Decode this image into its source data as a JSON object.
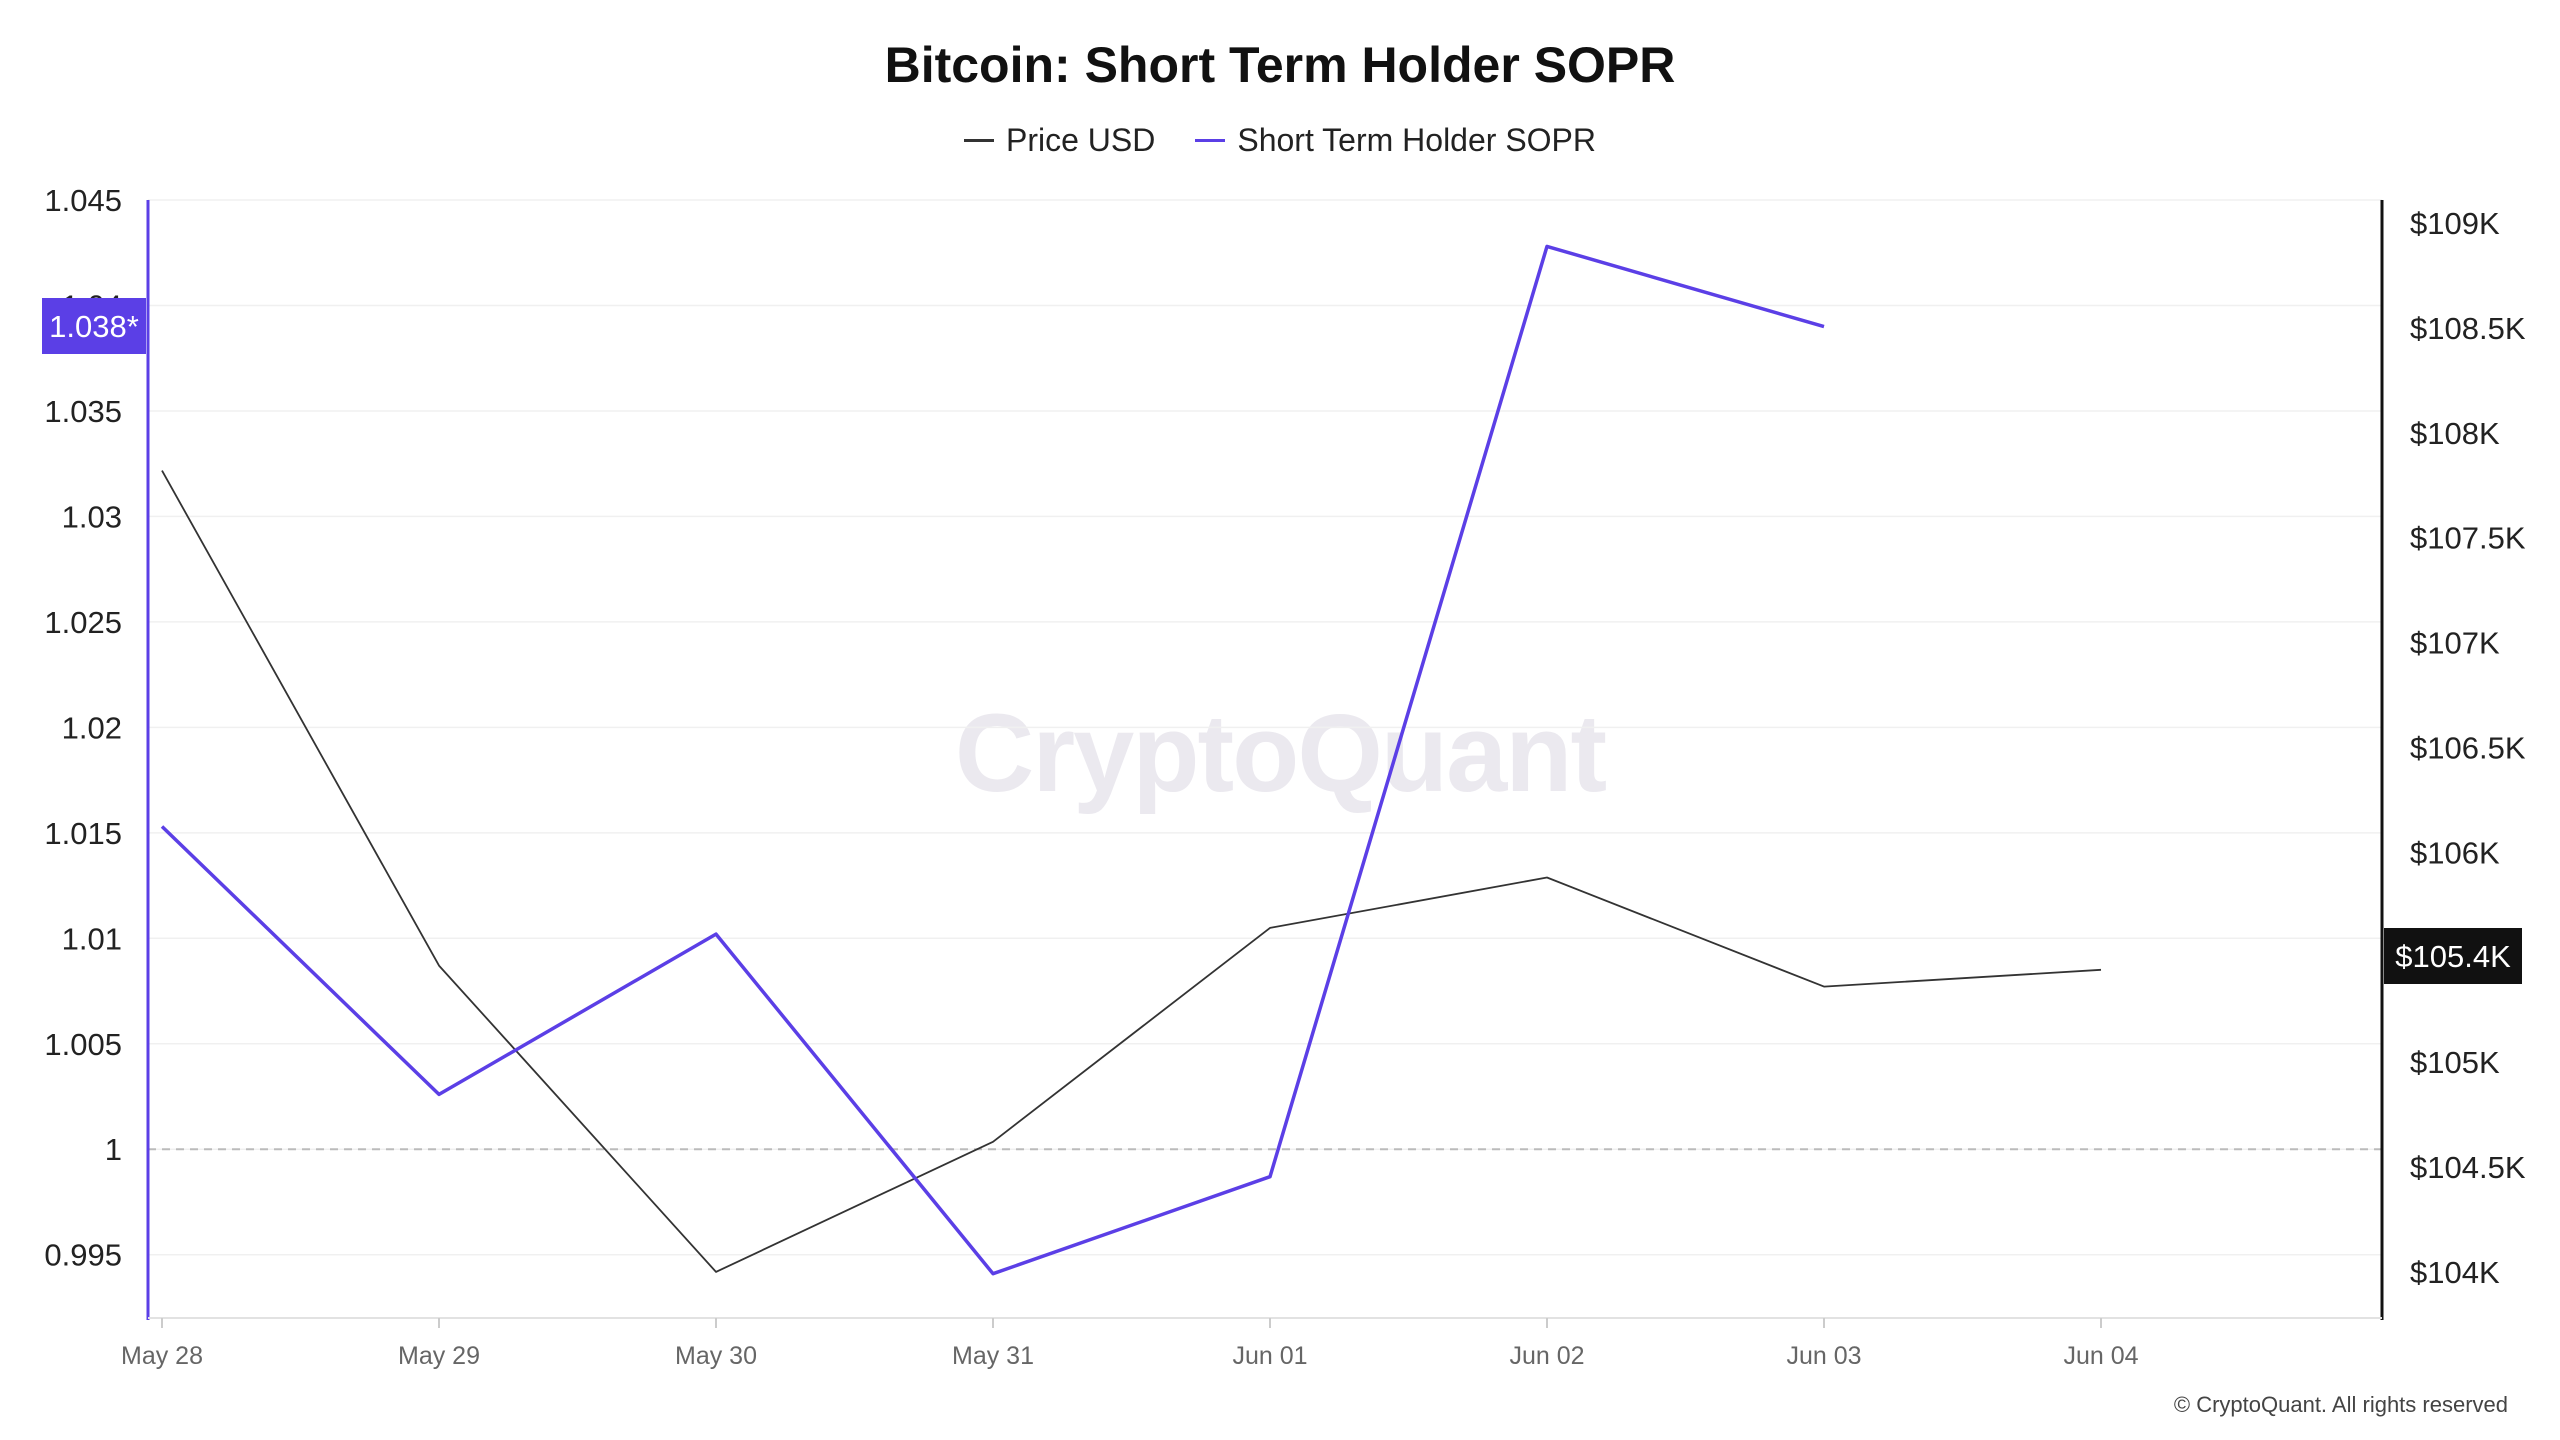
{
  "title": "Bitcoin: Short Term Holder SOPR",
  "watermark": "CryptoQuant",
  "footer": "© CryptoQuant. All rights reserved",
  "legend": [
    {
      "name": "Price USD",
      "color": "#333333"
    },
    {
      "name": "Short Term Holder SOPR",
      "color": "#5b3fe6"
    }
  ],
  "chart_data": {
    "type": "line",
    "title": "Bitcoin: Short Term Holder SOPR",
    "categories": [
      "May 28",
      "May 29",
      "May 30",
      "May 31",
      "Jun 01",
      "Jun 02",
      "Jun 03",
      "Jun 04"
    ],
    "left_axis": {
      "ticks": [
        1.045,
        1.04,
        1.035,
        1.03,
        1.025,
        1.02,
        1.015,
        1.01,
        1.005,
        1,
        0.995
      ],
      "tick_labels": [
        "1.045",
        "1.04",
        "1.035",
        "1.03",
        "1.025",
        "1.02",
        "1.015",
        "1.01",
        "1.005",
        "1",
        "0.995"
      ],
      "range": [
        0.992,
        1.045
      ],
      "reference_line": 1,
      "current_marker": "1.038*",
      "color": "#5b3fe6"
    },
    "right_axis": {
      "ticks": [
        109000,
        108500,
        108000,
        107500,
        107000,
        106500,
        106000,
        105500,
        105000,
        104500,
        104000
      ],
      "tick_labels": [
        "$109K",
        "$108.5K",
        "$108K",
        "$107.5K",
        "$107K",
        "$106.5K",
        "$106K",
        "",
        "$105K",
        "$104.5K",
        "$104K"
      ],
      "range": [
        103780,
        109110
      ],
      "current_marker": "$105.4K",
      "color": "#111111"
    },
    "grid": true,
    "legend_position": "top-center",
    "series": [
      {
        "name": "Price USD",
        "axis": "right",
        "color": "#333333",
        "values": [
          107820,
          105460,
          104000,
          104620,
          105640,
          105880,
          105360,
          105440
        ]
      },
      {
        "name": "Short Term Holder SOPR",
        "axis": "left",
        "color": "#5b3fe6",
        "values": [
          1.0153,
          1.0026,
          1.0102,
          0.9941,
          0.9987,
          1.0428,
          1.039,
          null
        ]
      }
    ]
  }
}
